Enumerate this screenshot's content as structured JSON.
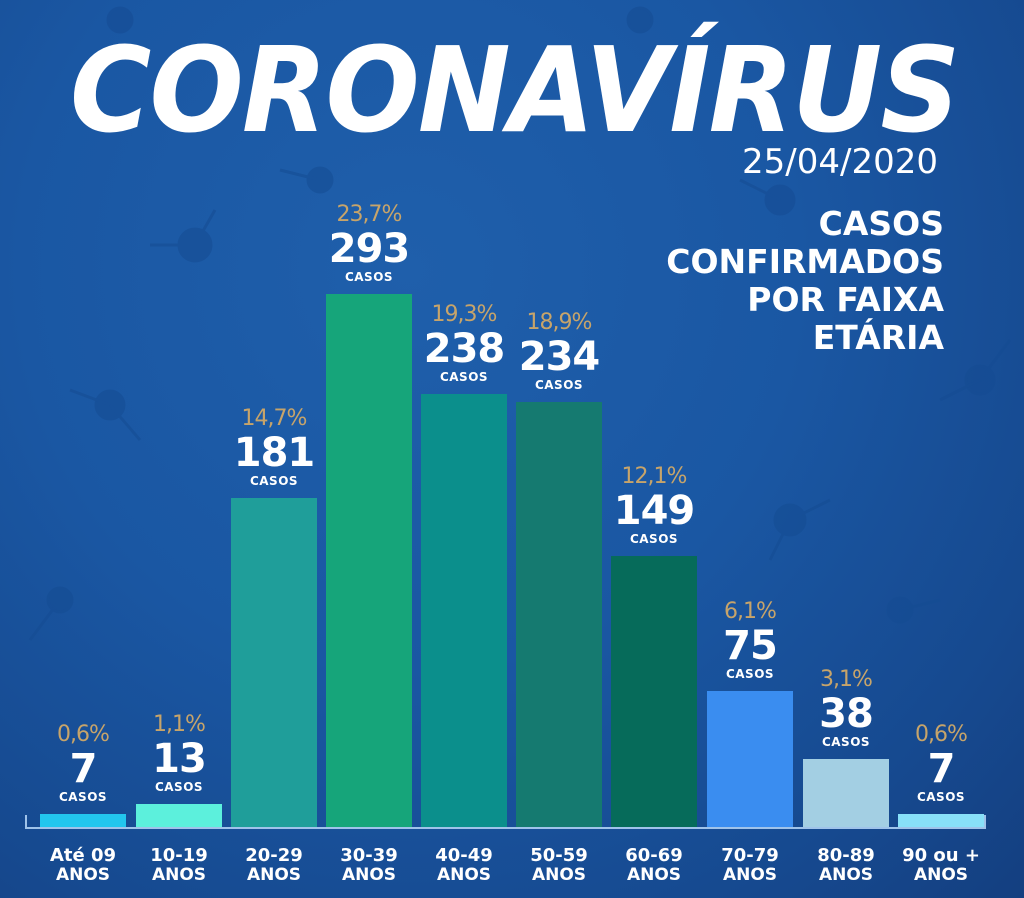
{
  "header": {
    "title": "CORONAVÍRUS",
    "date": "25/04/2020",
    "subtitle_lines": [
      "CASOS",
      "CONFIRMADOS",
      "POR FAIXA",
      "ETÁRIA"
    ]
  },
  "unit_label": "CASOS",
  "colors": {
    "background": "#1a57a3",
    "percent_text": "#c7a46a",
    "text": "#ffffff",
    "axis": "#9fc3ea"
  },
  "bars": [
    {
      "label_line1": "Até 09",
      "label_line2": "ANOS",
      "value": "7",
      "percent": "0,6%",
      "color": "#22c6ee"
    },
    {
      "label_line1": "10-19",
      "label_line2": "ANOS",
      "value": "13",
      "percent": "1,1%",
      "color": "#5cf0dc"
    },
    {
      "label_line1": "20-29",
      "label_line2": "ANOS",
      "value": "181",
      "percent": "14,7%",
      "color": "#1f9e9a"
    },
    {
      "label_line1": "30-39",
      "label_line2": "ANOS",
      "value": "293",
      "percent": "23,7%",
      "color": "#16a57a"
    },
    {
      "label_line1": "40-49",
      "label_line2": "ANOS",
      "value": "238",
      "percent": "19,3%",
      "color": "#0b8f8c"
    },
    {
      "label_line1": "50-59",
      "label_line2": "ANOS",
      "value": "234",
      "percent": "18,9%",
      "color": "#157a70"
    },
    {
      "label_line1": "60-69",
      "label_line2": "ANOS",
      "value": "149",
      "percent": "12,1%",
      "color": "#066b5a"
    },
    {
      "label_line1": "70-79",
      "label_line2": "ANOS",
      "value": "75",
      "percent": "6,1%",
      "color": "#3a8df0"
    },
    {
      "label_line1": "80-89",
      "label_line2": "ANOS",
      "value": "38",
      "percent": "3,1%",
      "color": "#a3cfe3"
    },
    {
      "label_line1": "90 ou +",
      "label_line2": "ANOS",
      "value": "7",
      "percent": "0,6%",
      "color": "#88e0f8"
    }
  ],
  "chart_data": {
    "type": "bar",
    "title": "CORONAVÍRUS — Casos confirmados por faixa etária",
    "subtitle": "25/04/2020",
    "categories": [
      "Até 09 anos",
      "10-19 anos",
      "20-29 anos",
      "30-39 anos",
      "40-49 anos",
      "50-59 anos",
      "60-69 anos",
      "70-79 anos",
      "80-89 anos",
      "90 ou + anos"
    ],
    "values": [
      7,
      13,
      181,
      293,
      238,
      234,
      149,
      75,
      38,
      7
    ],
    "percentages": [
      0.6,
      1.1,
      14.7,
      23.7,
      19.3,
      18.9,
      12.1,
      6.1,
      3.1,
      0.6
    ],
    "data_label_unit": "CASOS",
    "xlabel": "Faixa etária",
    "ylabel": "Casos confirmados",
    "ylim": [
      0,
      300
    ],
    "grid": false,
    "legend": null
  }
}
